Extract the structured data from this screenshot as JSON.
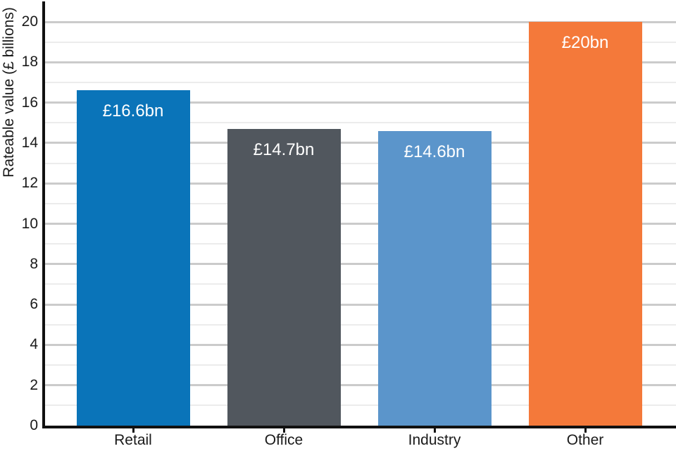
{
  "chart_data": {
    "type": "bar",
    "title": "",
    "xlabel": "",
    "ylabel": "Rateable value (£ billions)",
    "categories": [
      "Retail",
      "Office",
      "Industry",
      "Other"
    ],
    "values": [
      16.6,
      14.7,
      14.6,
      20
    ],
    "bar_labels": [
      "£16.6bn",
      "£14.7bn",
      "£14.6bn",
      "£20bn"
    ],
    "bar_colors": [
      "#0a74b9",
      "#51575e",
      "#5b95cb",
      "#f4793a"
    ],
    "ylim": [
      0,
      20
    ],
    "y_major_ticks": [
      0,
      2,
      4,
      6,
      8,
      10,
      12,
      14,
      16,
      18,
      20
    ],
    "y_minor_ticks": [
      1,
      3,
      5,
      7,
      9,
      11,
      13,
      15,
      17,
      19
    ],
    "grid": "horizontal, major and minor lines, no vertical gridlines",
    "legend": "none",
    "colors": {
      "axis": "#111111",
      "grid_major": "#cbcbcb",
      "grid_minor": "#ececec",
      "tick_text": "#1a1a1a",
      "bar_label_text": "#ffffff",
      "background": "#ffffff"
    }
  }
}
